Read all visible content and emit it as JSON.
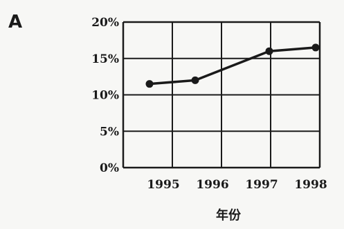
{
  "panel_label": "A",
  "chart_data": {
    "type": "line",
    "title": "",
    "xlabel": "年份",
    "ylabel": "",
    "categories": [
      "1995",
      "1996",
      "1997",
      "1998"
    ],
    "series": [
      {
        "values": [
          11.5,
          12,
          16,
          16.5
        ]
      }
    ],
    "ylim": [
      0,
      20
    ],
    "yticks": [
      "0%",
      "5%",
      "10%",
      "15%",
      "20%"
    ],
    "grid": true,
    "legend": "none",
    "colors": {
      "line": "#1a1a1a",
      "grid": "#1a1a1a"
    }
  }
}
